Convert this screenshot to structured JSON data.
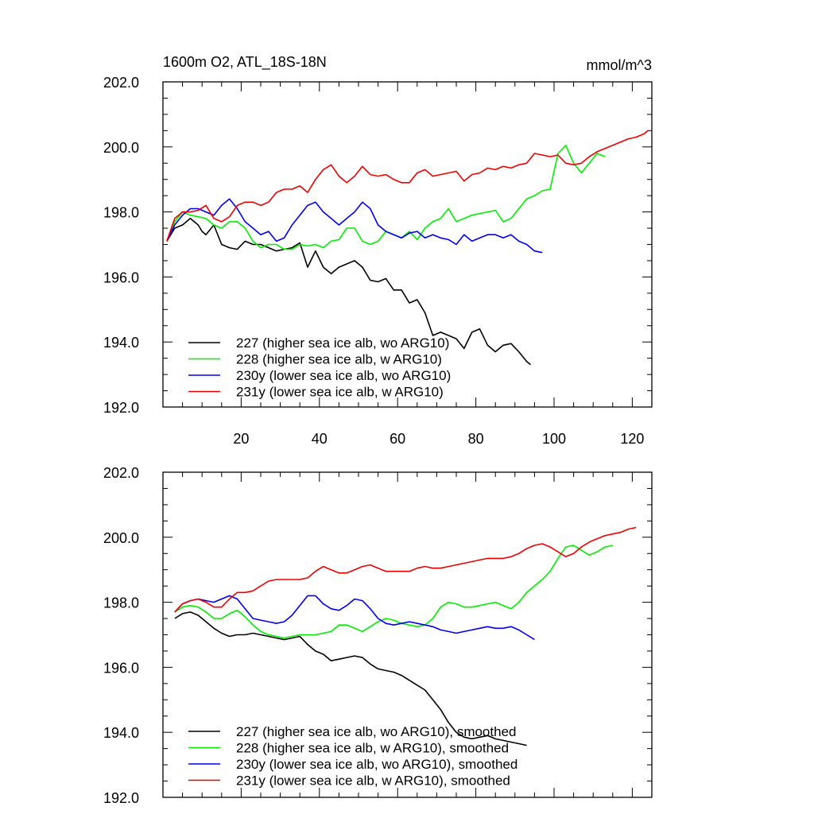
{
  "chart_data": [
    {
      "type": "line",
      "title": "1600m O2, ATL_18S-18N",
      "unit_label": "mmol/m^3",
      "xlim": [
        0,
        125
      ],
      "ylim": [
        192,
        202
      ],
      "y_tick_labels": [
        "192.0",
        "194.0",
        "196.0",
        "198.0",
        "200.0",
        "202.0"
      ],
      "y_tick_values": [
        192,
        194,
        196,
        198,
        200,
        202
      ],
      "x_tick_labels": [
        "20",
        "40",
        "60",
        "80",
        "100",
        "120"
      ],
      "x_tick_values": [
        20,
        40,
        60,
        80,
        100,
        120
      ],
      "legend_position": "lower-left",
      "series": [
        {
          "name": "227 (higher sea ice alb, wo ARG10)",
          "color": "#000000",
          "x": [
            1,
            3,
            5,
            7,
            9,
            10,
            11,
            13,
            15,
            17,
            19,
            21,
            23,
            25,
            27,
            29,
            31,
            33,
            35,
            37,
            39,
            41,
            43,
            45,
            47,
            49,
            51,
            53,
            55,
            57,
            59,
            61,
            63,
            65,
            67,
            69,
            71,
            73,
            75,
            77,
            79,
            81,
            83,
            85,
            87,
            89,
            91,
            93,
            94
          ],
          "y": [
            197.1,
            197.5,
            197.6,
            197.8,
            197.6,
            197.4,
            197.3,
            197.6,
            197.0,
            196.9,
            196.85,
            197.1,
            197.0,
            197.0,
            196.9,
            196.8,
            196.85,
            196.9,
            197.05,
            196.3,
            196.8,
            196.3,
            196.1,
            196.3,
            196.4,
            196.5,
            196.3,
            195.9,
            195.85,
            195.95,
            195.6,
            195.6,
            195.2,
            195.3,
            194.9,
            194.2,
            194.3,
            194.2,
            194.1,
            193.8,
            194.3,
            194.4,
            193.9,
            193.7,
            193.9,
            193.95,
            193.7,
            193.4,
            193.3
          ]
        },
        {
          "name": "228 (higher sea ice alb, w ARG10)",
          "color": "#00ee00",
          "x": [
            1,
            3,
            5,
            7,
            9,
            11,
            13,
            15,
            17,
            19,
            21,
            23,
            25,
            27,
            29,
            31,
            33,
            35,
            37,
            39,
            41,
            43,
            45,
            47,
            49,
            51,
            53,
            55,
            57,
            59,
            61,
            63,
            65,
            67,
            69,
            71,
            73,
            75,
            77,
            79,
            81,
            83,
            85,
            87,
            89,
            91,
            93,
            95,
            97,
            99,
            101,
            103,
            105,
            107,
            109,
            111,
            113
          ],
          "y": [
            197.1,
            197.7,
            198.0,
            197.9,
            197.85,
            197.8,
            197.6,
            197.5,
            197.7,
            197.7,
            197.5,
            197.1,
            196.9,
            197.0,
            197.0,
            196.85,
            196.85,
            197.0,
            196.95,
            197.0,
            196.9,
            197.1,
            197.15,
            197.5,
            197.5,
            197.1,
            197.0,
            197.1,
            197.4,
            197.3,
            197.2,
            197.4,
            197.15,
            197.5,
            197.7,
            197.8,
            198.1,
            197.7,
            197.8,
            197.9,
            197.95,
            198.0,
            198.05,
            197.7,
            197.8,
            198.1,
            198.4,
            198.5,
            198.65,
            198.7,
            199.8,
            200.05,
            199.5,
            199.2,
            199.5,
            199.8,
            199.7
          ]
        },
        {
          "name": "230y (lower sea ice alb, wo ARG10)",
          "color": "#0000ee",
          "x": [
            1,
            3,
            5,
            7,
            9,
            11,
            13,
            15,
            17,
            19,
            21,
            23,
            25,
            27,
            29,
            31,
            33,
            35,
            37,
            39,
            41,
            43,
            45,
            47,
            49,
            51,
            53,
            55,
            57,
            59,
            61,
            63,
            65,
            67,
            69,
            71,
            73,
            75,
            77,
            79,
            81,
            83,
            85,
            87,
            89,
            91,
            93,
            95,
            97
          ],
          "y": [
            197.1,
            197.6,
            197.9,
            198.1,
            198.1,
            198.0,
            197.9,
            198.2,
            198.4,
            198.1,
            197.7,
            197.5,
            197.3,
            197.4,
            197.1,
            197.2,
            197.6,
            197.9,
            198.2,
            198.3,
            198.0,
            197.8,
            197.6,
            197.8,
            198.0,
            198.3,
            198.1,
            197.6,
            197.4,
            197.3,
            197.2,
            197.35,
            197.4,
            197.2,
            197.3,
            197.2,
            197.15,
            197.0,
            197.3,
            197.1,
            197.2,
            197.3,
            197.3,
            197.2,
            197.3,
            197.1,
            197.0,
            196.8,
            196.75
          ]
        },
        {
          "name": "231y (lower sea ice alb, w ARG10)",
          "color": "#ee0000",
          "x": [
            1,
            3,
            5,
            7,
            9,
            11,
            13,
            15,
            17,
            19,
            21,
            23,
            25,
            27,
            29,
            31,
            33,
            35,
            37,
            39,
            41,
            43,
            45,
            47,
            49,
            51,
            53,
            55,
            57,
            59,
            61,
            63,
            65,
            67,
            69,
            71,
            73,
            75,
            77,
            79,
            81,
            83,
            85,
            87,
            89,
            91,
            93,
            95,
            97,
            99,
            101,
            103,
            105,
            107,
            109,
            111,
            113,
            115,
            117,
            119,
            121,
            123,
            124
          ],
          "y": [
            197.1,
            197.8,
            198.0,
            198.0,
            198.05,
            198.2,
            197.8,
            197.7,
            197.85,
            198.2,
            198.3,
            198.3,
            198.2,
            198.3,
            198.6,
            198.7,
            198.7,
            198.8,
            198.6,
            199.0,
            199.3,
            199.45,
            199.1,
            198.9,
            199.1,
            199.4,
            199.15,
            199.1,
            199.15,
            199.0,
            198.9,
            198.9,
            199.2,
            199.3,
            199.1,
            199.15,
            199.2,
            199.25,
            198.95,
            199.15,
            199.2,
            199.35,
            199.3,
            199.4,
            199.35,
            199.45,
            199.5,
            199.8,
            199.75,
            199.7,
            199.75,
            199.5,
            199.45,
            199.5,
            199.7,
            199.85,
            199.95,
            200.05,
            200.15,
            200.25,
            200.3,
            200.4,
            200.5
          ]
        }
      ]
    },
    {
      "type": "line",
      "title": "",
      "xlim": [
        0,
        125
      ],
      "ylim": [
        192,
        202
      ],
      "y_tick_labels": [
        "192.0",
        "194.0",
        "196.0",
        "198.0",
        "200.0",
        "202.0"
      ],
      "y_tick_values": [
        192,
        194,
        196,
        198,
        200,
        202
      ],
      "x_tick_labels": [],
      "x_tick_values": [
        20,
        40,
        60,
        80,
        100,
        120
      ],
      "legend_position": "lower-left",
      "series": [
        {
          "name": "227 (higher sea ice alb, wo ARG10), smoothed",
          "color": "#000000",
          "x": [
            3,
            5,
            7,
            9,
            11,
            13,
            15,
            17,
            19,
            21,
            23,
            25,
            27,
            29,
            31,
            33,
            35,
            37,
            39,
            41,
            43,
            45,
            47,
            49,
            51,
            53,
            55,
            57,
            59,
            61,
            63,
            65,
            67,
            69,
            71,
            73,
            75,
            77,
            79,
            81,
            83,
            85,
            87,
            89,
            91,
            93
          ],
          "y": [
            197.5,
            197.65,
            197.7,
            197.6,
            197.4,
            197.2,
            197.05,
            196.95,
            197.0,
            197.0,
            197.05,
            197.0,
            196.95,
            196.9,
            196.85,
            196.9,
            196.95,
            196.7,
            196.5,
            196.4,
            196.2,
            196.25,
            196.3,
            196.35,
            196.3,
            196.1,
            195.95,
            195.9,
            195.85,
            195.75,
            195.6,
            195.45,
            195.3,
            195.0,
            194.7,
            194.3,
            194.0,
            193.85,
            193.8,
            193.85,
            193.9,
            193.8,
            193.75,
            193.7,
            193.65,
            193.6
          ]
        },
        {
          "name": "228 (higher sea ice alb, w ARG10), smoothed",
          "color": "#00ee00",
          "x": [
            3,
            5,
            7,
            9,
            11,
            13,
            15,
            17,
            19,
            21,
            23,
            25,
            27,
            29,
            31,
            33,
            35,
            37,
            39,
            41,
            43,
            45,
            47,
            49,
            51,
            53,
            55,
            57,
            59,
            61,
            63,
            65,
            67,
            69,
            71,
            73,
            75,
            77,
            79,
            81,
            83,
            85,
            87,
            89,
            91,
            93,
            95,
            97,
            99,
            101,
            103,
            105,
            107,
            109,
            111,
            113,
            115
          ],
          "y": [
            197.7,
            197.85,
            197.9,
            197.85,
            197.7,
            197.5,
            197.5,
            197.65,
            197.75,
            197.55,
            197.3,
            197.1,
            197.0,
            196.95,
            196.9,
            196.95,
            197.0,
            197.0,
            197.0,
            197.05,
            197.1,
            197.3,
            197.3,
            197.2,
            197.1,
            197.25,
            197.4,
            197.5,
            197.45,
            197.35,
            197.3,
            197.25,
            197.3,
            197.5,
            197.85,
            198.0,
            197.95,
            197.85,
            197.85,
            197.9,
            197.95,
            198.0,
            197.9,
            197.8,
            198.0,
            198.3,
            198.5,
            198.7,
            198.95,
            199.35,
            199.7,
            199.75,
            199.6,
            199.45,
            199.55,
            199.7,
            199.75
          ]
        },
        {
          "name": "230y (lower sea ice alb, wo ARG10), smoothed",
          "color": "#0000ee",
          "x": [
            3,
            5,
            7,
            9,
            11,
            13,
            15,
            17,
            19,
            21,
            23,
            25,
            27,
            29,
            31,
            33,
            35,
            37,
            39,
            41,
            43,
            45,
            47,
            49,
            51,
            53,
            55,
            57,
            59,
            61,
            63,
            65,
            67,
            69,
            71,
            73,
            75,
            77,
            79,
            81,
            83,
            85,
            87,
            89,
            91,
            93,
            95
          ],
          "y": [
            197.7,
            197.95,
            198.05,
            198.1,
            198.05,
            198.0,
            198.1,
            198.2,
            198.1,
            197.8,
            197.5,
            197.45,
            197.4,
            197.35,
            197.4,
            197.6,
            197.9,
            198.2,
            198.2,
            197.95,
            197.8,
            197.75,
            197.9,
            198.1,
            198.05,
            197.8,
            197.5,
            197.35,
            197.3,
            197.35,
            197.4,
            197.35,
            197.3,
            197.25,
            197.15,
            197.1,
            197.05,
            197.1,
            197.15,
            197.2,
            197.25,
            197.2,
            197.2,
            197.25,
            197.15,
            197.0,
            196.85
          ]
        },
        {
          "name": "231y (lower sea ice alb, w ARG10), smoothed",
          "color": "#ee0000",
          "x": [
            3,
            5,
            7,
            9,
            11,
            13,
            15,
            17,
            19,
            21,
            23,
            25,
            27,
            29,
            31,
            33,
            35,
            37,
            39,
            41,
            43,
            45,
            47,
            49,
            51,
            53,
            55,
            57,
            59,
            61,
            63,
            65,
            67,
            69,
            71,
            73,
            75,
            77,
            79,
            81,
            83,
            85,
            87,
            89,
            91,
            93,
            95,
            97,
            99,
            101,
            103,
            105,
            107,
            109,
            111,
            113,
            115,
            117,
            119,
            121
          ],
          "y": [
            197.7,
            197.95,
            198.05,
            198.1,
            198.0,
            197.85,
            197.85,
            198.1,
            198.3,
            198.3,
            198.35,
            198.5,
            198.65,
            198.7,
            198.7,
            198.7,
            198.7,
            198.75,
            198.95,
            199.1,
            199.0,
            198.9,
            198.9,
            199.0,
            199.1,
            199.15,
            199.05,
            198.95,
            198.95,
            198.95,
            198.95,
            199.05,
            199.1,
            199.05,
            199.05,
            199.1,
            199.15,
            199.2,
            199.25,
            199.3,
            199.35,
            199.35,
            199.35,
            199.4,
            199.5,
            199.65,
            199.75,
            199.8,
            199.7,
            199.55,
            199.4,
            199.5,
            199.7,
            199.85,
            199.95,
            200.05,
            200.1,
            200.15,
            200.25,
            200.3
          ]
        }
      ]
    }
  ]
}
